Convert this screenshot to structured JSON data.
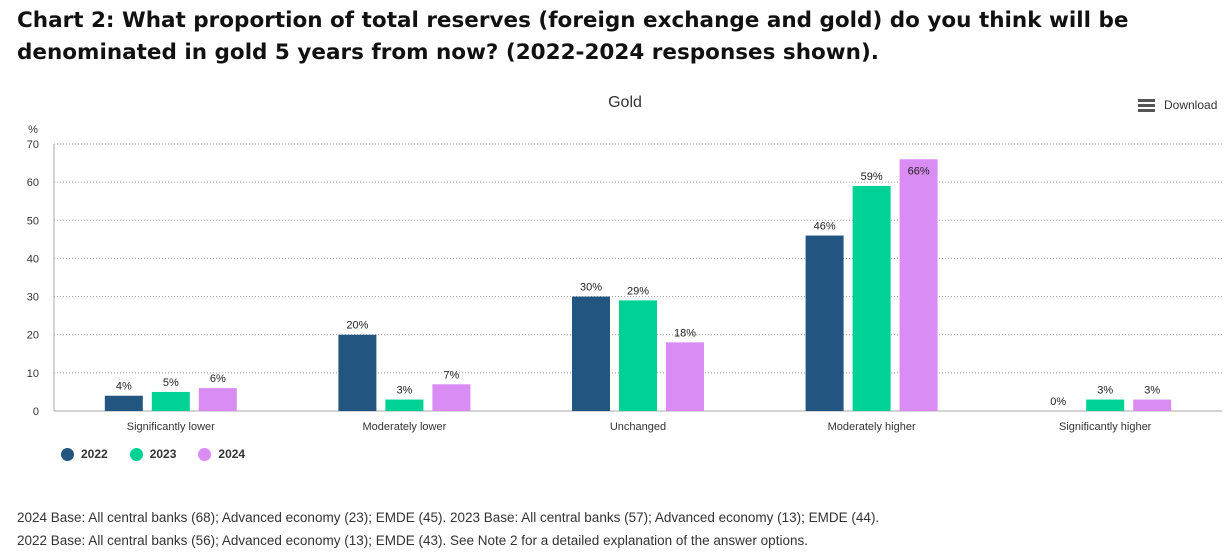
{
  "heading": {
    "line1": "Chart 2: What proportion of total reserves (foreign exchange and gold) do you think will be",
    "line2": "denominated in gold 5 years from now? (2022-2024 responses shown)."
  },
  "download": {
    "label": "Download",
    "icon": "hamburger-menu-icon"
  },
  "chart_data": {
    "type": "bar",
    "title": "Gold",
    "ylabel": "%",
    "xlabel": "",
    "ylim": [
      0,
      70
    ],
    "yticks": [
      0,
      10,
      20,
      30,
      40,
      50,
      60,
      70
    ],
    "grid": true,
    "categories": [
      "Significantly lower",
      "Moderately lower",
      "Unchanged",
      "Moderately higher",
      "Significantly higher"
    ],
    "series": [
      {
        "name": "2022",
        "color": "#22557F",
        "values": [
          4,
          20,
          30,
          46,
          0
        ],
        "labels": [
          "4%",
          "20%",
          "30%",
          "46%",
          "0%"
        ]
      },
      {
        "name": "2023",
        "color": "#00D295",
        "values": [
          5,
          3,
          29,
          59,
          3
        ],
        "labels": [
          "5%",
          "3%",
          "29%",
          "59%",
          "3%"
        ]
      },
      {
        "name": "2024",
        "color": "#DA8CF5",
        "values": [
          6,
          7,
          18,
          66,
          3
        ],
        "labels": [
          "6%",
          "7%",
          "18%",
          "66%",
          "3%"
        ]
      }
    ],
    "legend_position": "bottom-left"
  },
  "notes": {
    "line1": "2024 Base: All central banks (68); Advanced economy (23); EMDE (45). 2023 Base: All central banks (57); Advanced economy (13); EMDE (44).",
    "line2": "2022 Base: All central banks (56); Advanced economy (13); EMDE (43). See Note 2 for a detailed explanation of the answer options."
  }
}
